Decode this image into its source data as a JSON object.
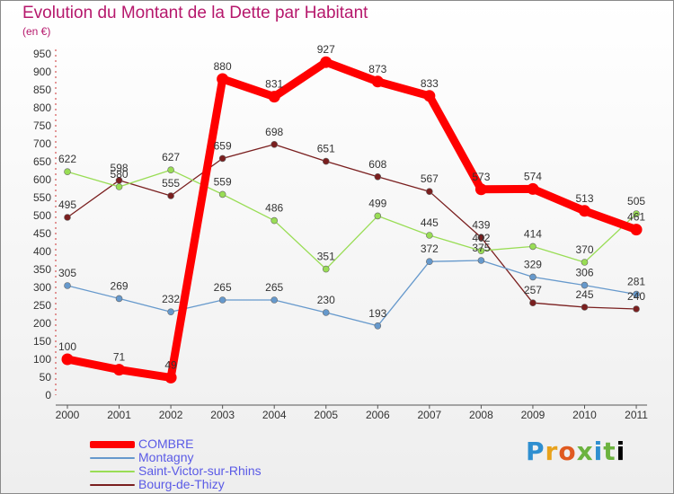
{
  "chart_data": {
    "type": "line",
    "title": "Evolution du Montant de la Dette par Habitant",
    "subtitle": "(en €)",
    "categories": [
      "2000",
      "2001",
      "2002",
      "2003",
      "2004",
      "2005",
      "2006",
      "2007",
      "2008",
      "2009",
      "2010",
      "2011"
    ],
    "ylim": [
      0,
      950
    ],
    "yticks": [
      0,
      50,
      100,
      150,
      200,
      250,
      300,
      350,
      400,
      450,
      500,
      550,
      600,
      650,
      700,
      750,
      800,
      850,
      900,
      950
    ],
    "grid": false,
    "legend_position": "bottom-left",
    "series": [
      {
        "name": "COMBRE",
        "color": "#ff0000",
        "values": [
          100,
          71,
          49,
          880,
          831,
          927,
          873,
          833,
          573,
          574,
          513,
          461
        ]
      },
      {
        "name": "Montagny",
        "color": "#6699cc",
        "values": [
          305,
          269,
          232,
          265,
          265,
          230,
          193,
          372,
          375,
          329,
          306,
          281
        ]
      },
      {
        "name": "Saint-Victor-sur-Rhins",
        "color": "#99dd55",
        "values": [
          622,
          580,
          627,
          559,
          486,
          351,
          499,
          445,
          402,
          414,
          370,
          505
        ]
      },
      {
        "name": "Bourg-de-Thizy",
        "color": "#7a1f1f",
        "values": [
          495,
          598,
          555,
          659,
          698,
          651,
          608,
          567,
          439,
          257,
          245,
          240
        ]
      }
    ]
  },
  "brand": {
    "letters": [
      "P",
      "r",
      "o",
      "x",
      "i",
      "t",
      "i"
    ]
  }
}
